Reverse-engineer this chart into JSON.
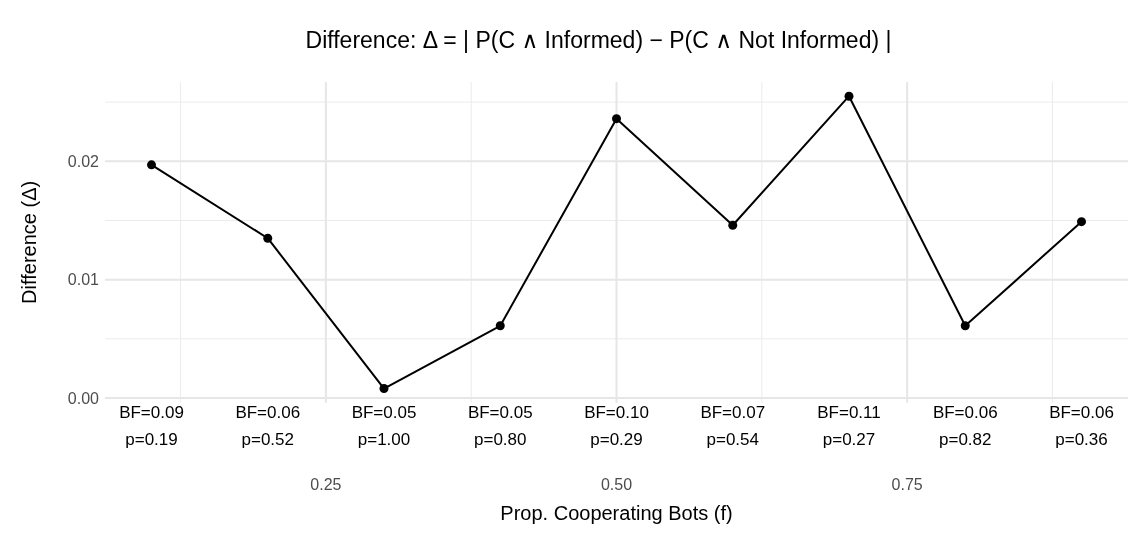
{
  "chart_data": {
    "type": "line",
    "title": "Difference: Δ = | P(C ∧ Informed) − P(C ∧ Not Informed) |",
    "xlabel": "Prop. Cooperating Bots (f)",
    "ylabel": "Difference (Δ)",
    "x": [
      0.1,
      0.2,
      0.3,
      0.4,
      0.5,
      0.6,
      0.7,
      0.8,
      0.9
    ],
    "series": [
      {
        "color": "#000000",
        "values": [
          0.0197,
          0.0135,
          0.0008,
          0.0061,
          0.0236,
          0.0146,
          0.0255,
          0.0061,
          0.0149
        ]
      }
    ],
    "xlim": [
      0.06,
      0.94
    ],
    "xticks": [
      0.25,
      {
        "value": 0.5,
        "label": "0.50"
      },
      0.75
    ],
    "ylim": [
      -0.0004,
      0.0267
    ],
    "yticks": [
      {
        "value": 0,
        "label": "0.00"
      },
      {
        "value": 0.01,
        "label": "0.01"
      },
      {
        "value": 0.02,
        "label": "0.02"
      }
    ],
    "grid": true,
    "marker": "circle",
    "line_style": "solid",
    "annotations": [
      "BF=0.09\np=0.19",
      "BF=0.06\np=0.52",
      "BF=0.05\np=1.00",
      "BF=0.05\np=0.80",
      "BF=0.10\np=0.29",
      "BF=0.07\np=0.54",
      "BF=0.11\np=0.27",
      "BF=0.06\np=0.82",
      "BF=0.06\np=0.36"
    ]
  }
}
